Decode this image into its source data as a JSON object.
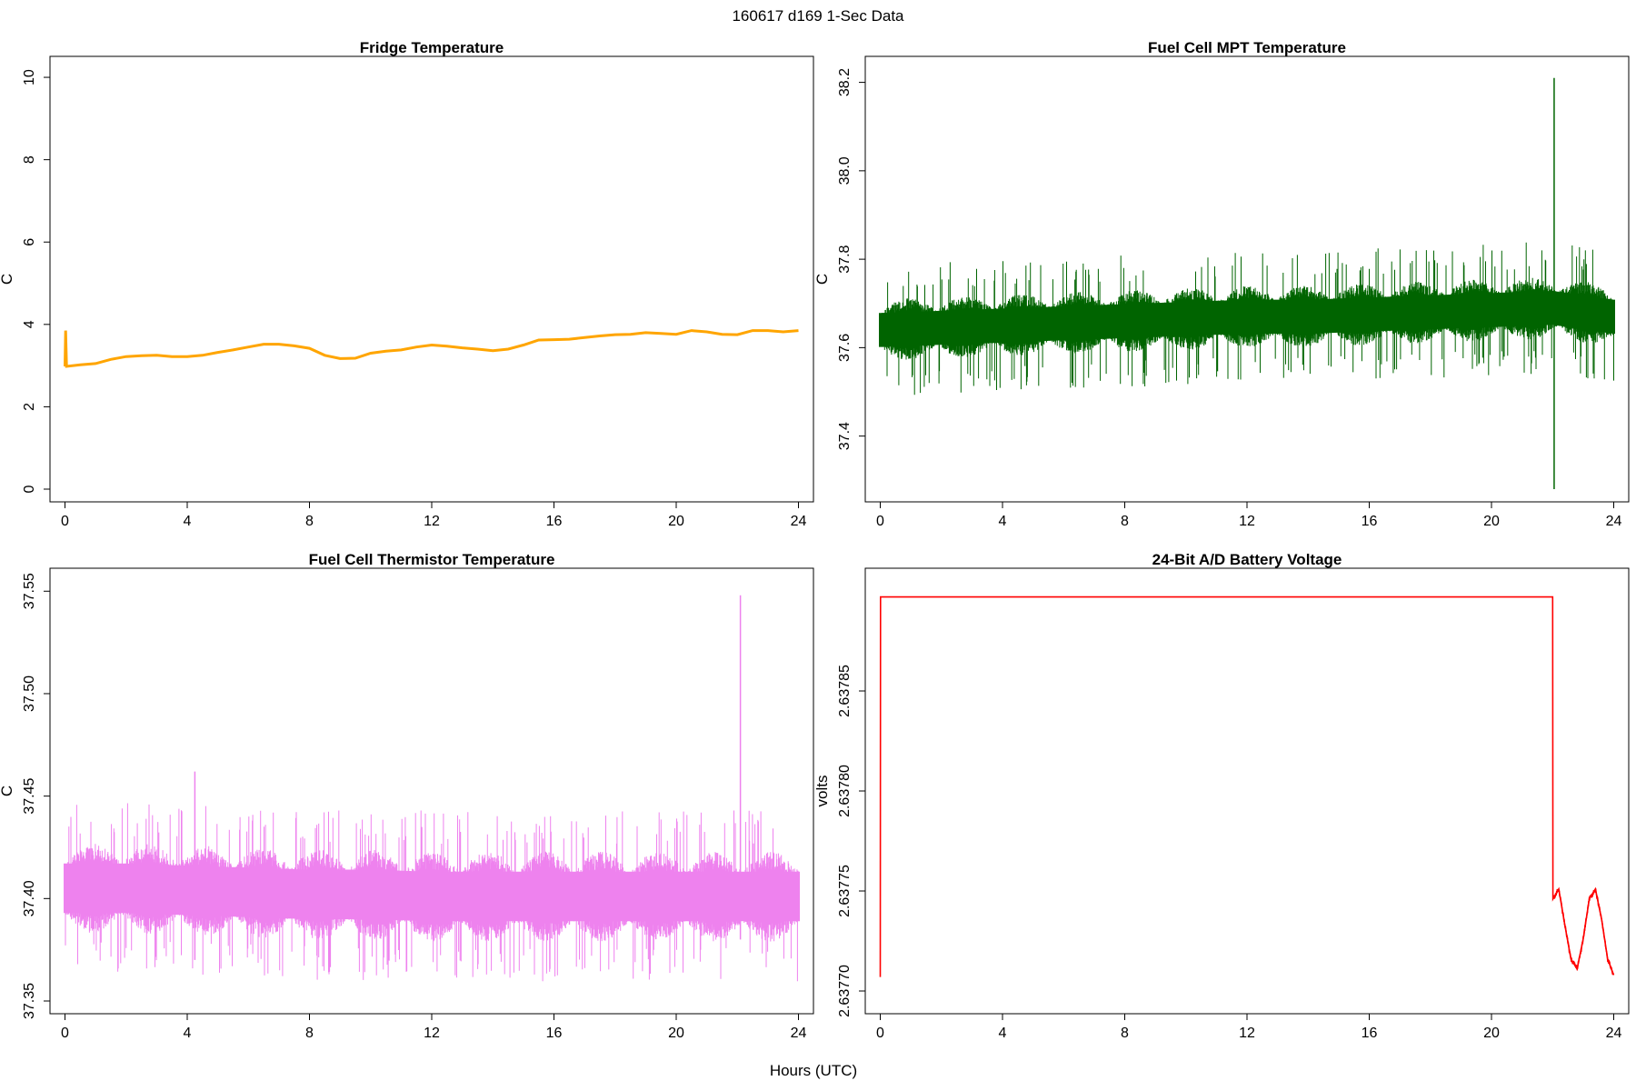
{
  "figure": {
    "main_title": "160617   d169   1-Sec Data",
    "shared_xlabel": "Hours (UTC)"
  },
  "chart_data": [
    {
      "type": "line",
      "title": "Fridge Temperature",
      "xlabel": "",
      "ylabel": "C",
      "xlim": [
        0,
        24
      ],
      "ylim": [
        0,
        10.2
      ],
      "xticks": [
        "0",
        "4",
        "8",
        "12",
        "16",
        "20",
        "24"
      ],
      "yticks": [
        "0",
        "2",
        "4",
        "6",
        "8",
        "10"
      ],
      "color": "#FFA500",
      "style": "smooth",
      "series": [
        {
          "x": [
            0,
            0.02,
            0.05,
            0.5,
            1,
            1.5,
            2,
            2.5,
            3,
            3.5,
            4,
            4.5,
            5,
            5.5,
            6,
            6.5,
            7,
            7.5,
            8,
            8.5,
            9,
            9.5,
            10,
            10.5,
            11,
            11.5,
            12,
            12.5,
            13,
            13.5,
            14,
            14.5,
            15,
            15.5,
            16,
            16.5,
            17,
            17.5,
            18,
            18.5,
            19,
            19.5,
            20,
            20.5,
            21,
            21.5,
            22,
            22.5,
            23,
            23.5,
            24
          ],
          "values": [
            2.98,
            3.85,
            2.98,
            3.02,
            3.05,
            3.15,
            3.22,
            3.24,
            3.25,
            3.22,
            3.22,
            3.25,
            3.32,
            3.38,
            3.45,
            3.52,
            3.52,
            3.48,
            3.42,
            3.25,
            3.17,
            3.18,
            3.3,
            3.35,
            3.38,
            3.45,
            3.5,
            3.47,
            3.43,
            3.4,
            3.36,
            3.4,
            3.5,
            3.62,
            3.63,
            3.64,
            3.68,
            3.72,
            3.75,
            3.76,
            3.8,
            3.78,
            3.76,
            3.85,
            3.82,
            3.76,
            3.75,
            3.85,
            3.85,
            3.82,
            3.85
          ]
        }
      ]
    },
    {
      "type": "line",
      "title": "Fuel Cell MPT Temperature",
      "xlabel": "",
      "ylabel": "C",
      "xlim": [
        0,
        24
      ],
      "ylim": [
        37.28,
        38.23
      ],
      "xticks": [
        "0",
        "4",
        "8",
        "12",
        "16",
        "20",
        "24"
      ],
      "yticks": [
        "37.4",
        "37.6",
        "37.8",
        "38.0",
        "38.2"
      ],
      "color": "#006400",
      "style": "noise-band",
      "series": [
        {
          "x": [
            0,
            2,
            4,
            6,
            8,
            10,
            12,
            14,
            16,
            18,
            20,
            22,
            24
          ],
          "values": [
            37.64,
            37.645,
            37.65,
            37.655,
            37.66,
            37.665,
            37.67,
            37.67,
            37.675,
            37.68,
            37.685,
            37.69,
            37.67
          ],
          "band_halfwidth": 0.07,
          "outlier_halfwidth": 0.15,
          "spikes": [
            {
              "x": 22.05,
              "max": 38.21,
              "min": 37.28
            }
          ]
        }
      ]
    },
    {
      "type": "line",
      "title": "Fuel Cell Thermistor Temperature",
      "xlabel": "",
      "ylabel": "C",
      "xlim": [
        0,
        24
      ],
      "ylim": [
        37.35,
        37.555
      ],
      "xticks": [
        "0",
        "4",
        "8",
        "12",
        "16",
        "20",
        "24"
      ],
      "yticks": [
        "37.35",
        "37.40",
        "37.45",
        "37.50",
        "37.55"
      ],
      "color": "#EE82EE",
      "style": "noise-band",
      "series": [
        {
          "x": [
            0,
            2,
            4,
            6,
            8,
            10,
            12,
            14,
            16,
            18,
            20,
            22,
            24
          ],
          "values": [
            37.405,
            37.405,
            37.404,
            37.403,
            37.402,
            37.402,
            37.401,
            37.401,
            37.401,
            37.401,
            37.401,
            37.401,
            37.401
          ],
          "band_halfwidth": 0.022,
          "outlier_halfwidth": 0.042,
          "spikes": [
            {
              "x": 22.1,
              "max": 37.548,
              "min": 37.38
            },
            {
              "x": 4.25,
              "max": 37.462,
              "min": 37.37
            }
          ]
        }
      ]
    },
    {
      "type": "line",
      "title": "24-Bit A/D Battery Voltage",
      "xlabel": "",
      "ylabel": "volts",
      "xlim": [
        0,
        24
      ],
      "ylim": [
        2.637695,
        2.637905
      ],
      "xticks": [
        "0",
        "4",
        "8",
        "12",
        "16",
        "20",
        "24"
      ],
      "yticks": [
        "2.63770",
        "2.63775",
        "2.63780",
        "2.63785"
      ],
      "color": "#FF0000",
      "style": "step",
      "series": [
        {
          "x": [
            0,
            0.01,
            22.0,
            22.01,
            22.2,
            22.4,
            22.6,
            22.8,
            23.0,
            23.2,
            23.4,
            23.6,
            23.8,
            24.0
          ],
          "values": [
            2.637707,
            2.637897,
            2.637897,
            2.637746,
            2.637751,
            2.637733,
            2.637716,
            2.637711,
            2.637726,
            2.637746,
            2.637751,
            2.637736,
            2.637716,
            2.637708
          ]
        }
      ]
    }
  ]
}
